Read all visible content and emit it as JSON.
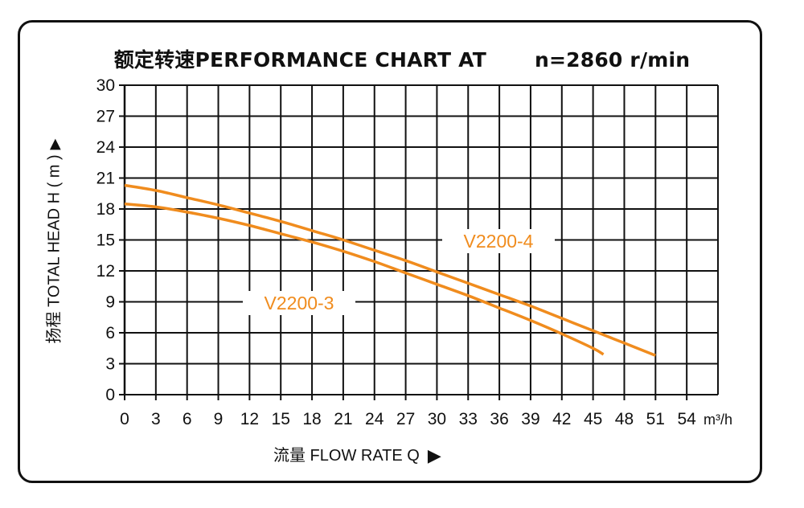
{
  "chart_data": {
    "type": "line",
    "title": "额定转速PERFORMANCE CHART AT",
    "title_speed": "n=2860 r/min",
    "xlabel": "流量 FLOW RATE Q",
    "xunit": "m³/h",
    "ylabel": "扬程 TOTAL HEAD H ( m )",
    "xlim": [
      0,
      57
    ],
    "ylim": [
      0,
      30
    ],
    "x_ticks": [
      0,
      3,
      6,
      9,
      12,
      15,
      18,
      21,
      24,
      27,
      30,
      33,
      36,
      39,
      42,
      45,
      48,
      51,
      54
    ],
    "y_ticks": [
      0,
      3,
      6,
      9,
      12,
      15,
      18,
      21,
      24,
      27,
      30
    ],
    "grid": true,
    "line_color": "#f08c1e",
    "series": [
      {
        "name": "V2200-4",
        "x": [
          0,
          3,
          6,
          9,
          12,
          15,
          18,
          21,
          24,
          27,
          30,
          33,
          36,
          39,
          42,
          45,
          48,
          51
        ],
        "y": [
          20.3,
          19.8,
          19.1,
          18.4,
          17.6,
          16.8,
          15.9,
          15.0,
          14.0,
          13.0,
          11.9,
          10.8,
          9.7,
          8.6,
          7.4,
          6.2,
          5.0,
          3.8
        ]
      },
      {
        "name": "V2200-3",
        "x": [
          0,
          3,
          6,
          9,
          12,
          15,
          18,
          21,
          24,
          27,
          30,
          33,
          36,
          39,
          42,
          45,
          46
        ],
        "y": [
          18.5,
          18.2,
          17.7,
          17.1,
          16.4,
          15.6,
          14.8,
          13.9,
          12.9,
          11.8,
          10.7,
          9.6,
          8.4,
          7.2,
          5.9,
          4.5,
          3.9
        ]
      }
    ]
  }
}
